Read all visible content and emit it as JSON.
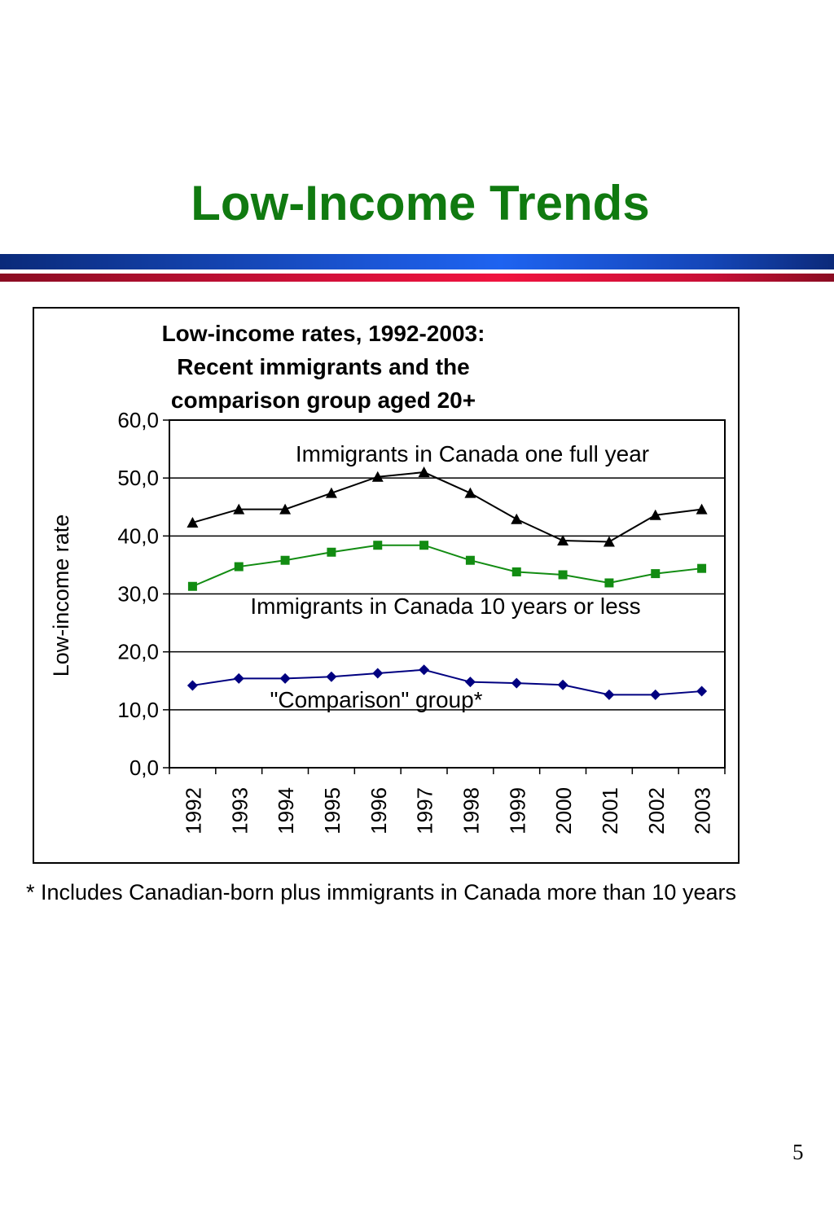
{
  "slide": {
    "title": "Low-Income Trends",
    "footnote": "* Includes Canadian-born plus immigrants in Canada more than 10 years",
    "page_number": "5"
  },
  "chart_data": {
    "type": "line",
    "title": "Low-income rates, 1992-2003: Recent immigrants and the comparison group aged 20+",
    "xlabel": "",
    "ylabel": "Low-income rate",
    "ylim": [
      0,
      60
    ],
    "yticks": [
      "0,0",
      "10,0",
      "20,0",
      "30,0",
      "40,0",
      "50,0",
      "60,0"
    ],
    "categories": [
      "1992",
      "1993",
      "1994",
      "1995",
      "1996",
      "1997",
      "1998",
      "1999",
      "2000",
      "2001",
      "2002",
      "2003"
    ],
    "grid": "horizontal",
    "series": [
      {
        "name": "Immigrants in Canada one full year",
        "color": "#000000",
        "marker": "triangle",
        "values": [
          42.3,
          44.6,
          44.6,
          47.4,
          50.2,
          51.0,
          47.4,
          42.9,
          39.2,
          39.0,
          43.6,
          44.6
        ]
      },
      {
        "name": "Immigrants in Canada 10 years or less",
        "color": "#128c12",
        "marker": "square",
        "values": [
          31.3,
          34.7,
          35.8,
          37.2,
          38.4,
          38.4,
          35.8,
          33.8,
          33.3,
          31.9,
          33.5,
          34.4
        ]
      },
      {
        "name": "\"Comparison\" group*",
        "color": "#000080",
        "marker": "diamond",
        "values": [
          14.2,
          15.4,
          15.4,
          15.7,
          16.3,
          16.9,
          14.8,
          14.6,
          14.3,
          12.6,
          12.6,
          13.2
        ]
      }
    ]
  }
}
